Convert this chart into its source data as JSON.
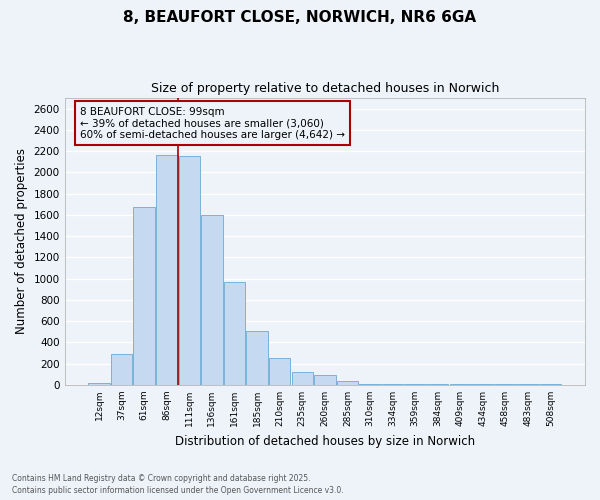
{
  "title_line1": "8, BEAUFORT CLOSE, NORWICH, NR6 6GA",
  "title_line2": "Size of property relative to detached houses in Norwich",
  "xlabel": "Distribution of detached houses by size in Norwich",
  "ylabel": "Number of detached properties",
  "footer_line1": "Contains HM Land Registry data © Crown copyright and database right 2025.",
  "footer_line2": "Contains public sector information licensed under the Open Government Licence v3.0.",
  "categories": [
    "12sqm",
    "37sqm",
    "61sqm",
    "86sqm",
    "111sqm",
    "136sqm",
    "161sqm",
    "185sqm",
    "210sqm",
    "235sqm",
    "260sqm",
    "285sqm",
    "310sqm",
    "334sqm",
    "359sqm",
    "384sqm",
    "409sqm",
    "434sqm",
    "458sqm",
    "483sqm",
    "508sqm"
  ],
  "values": [
    20,
    295,
    1670,
    2160,
    2155,
    1600,
    965,
    510,
    250,
    120,
    95,
    40,
    5,
    5,
    5,
    5,
    5,
    5,
    5,
    5,
    5
  ],
  "bar_color": "#c5d9f0",
  "bar_edge_color": "#6aaad4",
  "bg_color": "#eef3fa",
  "grid_color": "#ffffff",
  "vline_color": "#aa0000",
  "annotation_line1": "8 BEAUFORT CLOSE: 99sqm",
  "annotation_line2": "← 39% of detached houses are smaller (3,060)",
  "annotation_line3": "60% of semi-detached houses are larger (4,642) →",
  "annotation_box_edgecolor": "#aa0000",
  "ylim": [
    0,
    2700
  ],
  "yticks": [
    0,
    200,
    400,
    600,
    800,
    1000,
    1200,
    1400,
    1600,
    1800,
    2000,
    2200,
    2400,
    2600
  ],
  "vline_pos": 3.5
}
